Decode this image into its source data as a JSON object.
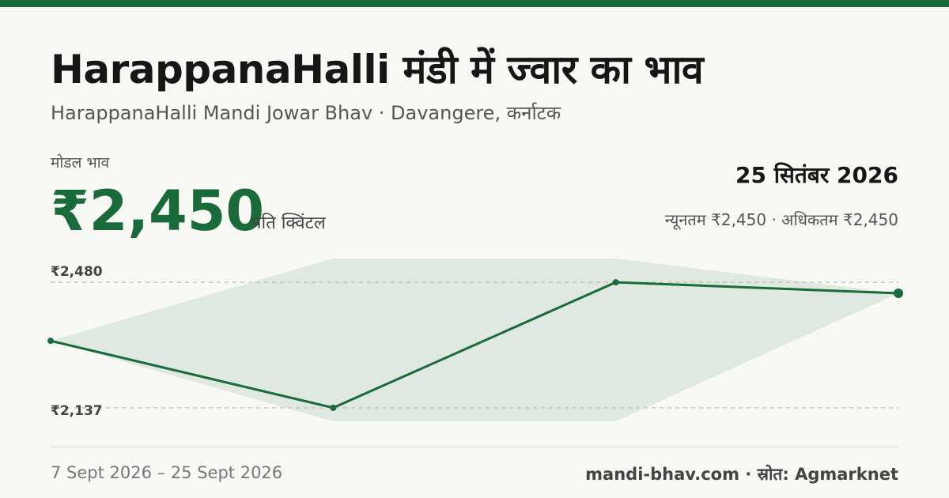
{
  "header": {
    "title": "HarappanaHalli मंडी में ज्वार का भाव",
    "subtitle": "HarappanaHalli Mandi Jowar Bhav · Davangere, कर्नाटक"
  },
  "price": {
    "label": "मोडल भाव",
    "value": "₹2,450",
    "unit": "प्रति क्विंटल"
  },
  "latest": {
    "date": "25 सितंबर 2026",
    "minmax": "न्यूनतम ₹2,450 · अधिकतम ₹2,450"
  },
  "footer": {
    "range": "7 Sept 2026 – 25 Sept 2026",
    "source": "mandi-bhav.com · स्रोत: Agmarknet"
  },
  "colors": {
    "accent": "#1a6b3a",
    "band": "#dfe8e1",
    "gridline": "#bdbdb5"
  },
  "chart_data": {
    "type": "line",
    "series": [
      {
        "name": "मोडल भाव",
        "values": [
          2320,
          2137,
          2480,
          2450
        ]
      },
      {
        "name": "न्यूनतम",
        "values": [
          2320,
          2100,
          2100,
          2450
        ]
      },
      {
        "name": "अधिकतम",
        "values": [
          2320,
          2545,
          2545,
          2450
        ]
      }
    ],
    "reference_lines": [
      2480,
      2137
    ],
    "tick_labels": [
      "₹2,480",
      "₹2,137"
    ],
    "ylim": [
      2100,
      2545
    ],
    "grid": false
  }
}
